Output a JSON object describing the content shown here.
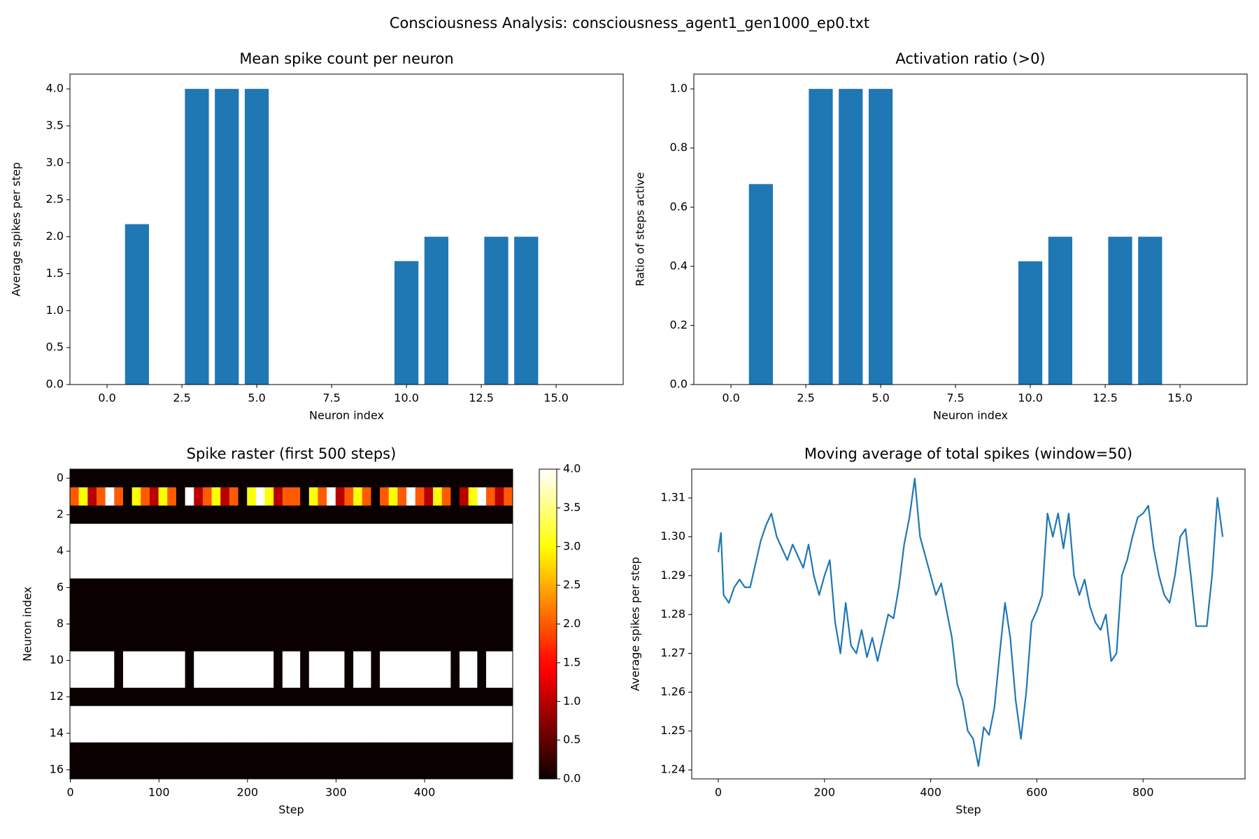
{
  "title": "Consciousness Analysis: consciousness_agent1_gen1000_ep0.txt",
  "chart_data": [
    {
      "type": "bar",
      "title": "Mean spike count per neuron",
      "xlabel": "Neuron index",
      "ylabel": "Average spikes per step",
      "x": [
        0,
        1,
        2,
        3,
        4,
        5,
        6,
        7,
        8,
        9,
        10,
        11,
        12,
        13,
        14,
        15,
        16
      ],
      "values": [
        0,
        2.17,
        0,
        4,
        4,
        4,
        0,
        0,
        0,
        0,
        1.67,
        2,
        0,
        2,
        2,
        0,
        0
      ],
      "color": "#1f77b4",
      "xlim": [
        -1.24,
        17.24
      ],
      "xticks": [
        {
          "value": 0,
          "label": "0.0"
        },
        {
          "value": 2.5,
          "label": "2.5"
        },
        {
          "value": 5,
          "label": "5.0"
        },
        {
          "value": 7.5,
          "label": "7.5"
        },
        {
          "value": 10,
          "label": "10.0"
        },
        {
          "value": 12.5,
          "label": "12.5"
        },
        {
          "value": 15,
          "label": "15.0"
        }
      ],
      "ylim": [
        0,
        4.2
      ],
      "yticks": [
        {
          "value": 0,
          "label": "0.0"
        },
        0.5,
        {
          "value": 1,
          "label": "1.0"
        },
        1.5,
        {
          "value": 2,
          "label": "2.0"
        },
        2.5,
        {
          "value": 3,
          "label": "3.0"
        },
        3.5,
        {
          "value": 4,
          "label": "4.0"
        }
      ]
    },
    {
      "type": "bar",
      "title": "Activation ratio (>0)",
      "xlabel": "Neuron index",
      "ylabel": "Ratio of steps active",
      "x": [
        0,
        1,
        2,
        3,
        4,
        5,
        6,
        7,
        8,
        9,
        10,
        11,
        12,
        13,
        14,
        15,
        16
      ],
      "values": [
        0,
        0.678,
        0,
        1,
        1,
        1,
        0,
        0,
        0,
        0,
        0.417,
        0.5,
        0,
        0.5,
        0.5,
        0,
        0
      ],
      "color": "#1f77b4",
      "xlim": [
        -1.24,
        17.24
      ],
      "xticks": [
        {
          "value": 0,
          "label": "0.0"
        },
        {
          "value": 2.5,
          "label": "2.5"
        },
        {
          "value": 5,
          "label": "5.0"
        },
        {
          "value": 7.5,
          "label": "7.5"
        },
        {
          "value": 10,
          "label": "10.0"
        },
        {
          "value": 12.5,
          "label": "12.5"
        },
        {
          "value": 15,
          "label": "15.0"
        }
      ],
      "ylim": [
        0,
        1.05
      ],
      "yticks": [
        {
          "value": 0,
          "label": "0.0"
        },
        0.2,
        0.4,
        0.6,
        0.8,
        {
          "value": 1,
          "label": "1.0"
        }
      ]
    },
    {
      "type": "heatmap",
      "title": "Spike raster (first 500 steps)",
      "xlabel": "Step",
      "ylabel": "Neuron index",
      "colormap": "hot",
      "clim": [
        0,
        4
      ],
      "colorbar_ticks": [
        {
          "value": 0,
          "label": "0.0"
        },
        0.5,
        {
          "value": 1,
          "label": "1.0"
        },
        1.5,
        {
          "value": 2,
          "label": "2.0"
        },
        2.5,
        {
          "value": 3,
          "label": "3.0"
        },
        3.5,
        {
          "value": 4,
          "label": "4.0"
        }
      ],
      "x": [
        0,
        10,
        20,
        30,
        40,
        50,
        60,
        70,
        80,
        90,
        100,
        110,
        120,
        130,
        140,
        150,
        160,
        170,
        180,
        190,
        200,
        210,
        220,
        230,
        240,
        250,
        260,
        270,
        280,
        290,
        300,
        310,
        320,
        330,
        340,
        350,
        360,
        370,
        380,
        390,
        400,
        410,
        420,
        430,
        440,
        450,
        460,
        470,
        480,
        490
      ],
      "y": [
        0,
        1,
        2,
        3,
        4,
        5,
        6,
        7,
        8,
        9,
        10,
        11,
        12,
        13,
        14,
        15,
        16
      ],
      "values": [
        [
          0,
          0,
          0,
          0,
          0,
          0,
          0,
          0,
          0,
          0,
          0,
          0,
          0,
          0,
          0,
          0,
          0,
          0,
          0,
          0,
          0,
          0,
          0,
          0,
          0,
          0,
          0,
          0,
          0,
          0,
          0,
          0,
          0,
          0,
          0,
          0,
          0,
          0,
          0,
          0,
          0,
          0,
          0,
          0,
          0,
          0,
          0,
          0,
          0,
          0
        ],
        [
          2,
          3,
          1,
          2,
          4,
          2,
          0,
          3,
          2,
          1,
          3,
          2,
          0,
          4,
          1,
          2,
          3,
          1,
          2,
          0,
          3,
          4,
          3,
          1,
          2,
          2,
          0,
          3,
          2,
          4,
          1,
          2,
          3,
          2,
          0,
          2,
          3,
          2,
          4,
          2,
          1,
          3,
          2,
          0,
          1,
          3,
          4,
          2,
          1,
          2
        ],
        [
          0,
          0,
          0,
          0,
          0,
          0,
          0,
          0,
          0,
          0,
          0,
          0,
          0,
          0,
          0,
          0,
          0,
          0,
          0,
          0,
          0,
          0,
          0,
          0,
          0,
          0,
          0,
          0,
          0,
          0,
          0,
          0,
          0,
          0,
          0,
          0,
          0,
          0,
          0,
          0,
          0,
          0,
          0,
          0,
          0,
          0,
          0,
          0,
          0,
          0
        ],
        [
          4,
          4,
          4,
          4,
          4,
          4,
          4,
          4,
          4,
          4,
          4,
          4,
          4,
          4,
          4,
          4,
          4,
          4,
          4,
          4,
          4,
          4,
          4,
          4,
          4,
          4,
          4,
          4,
          4,
          4,
          4,
          4,
          4,
          4,
          4,
          4,
          4,
          4,
          4,
          4,
          4,
          4,
          4,
          4,
          4,
          4,
          4,
          4,
          4,
          4
        ],
        [
          4,
          4,
          4,
          4,
          4,
          4,
          4,
          4,
          4,
          4,
          4,
          4,
          4,
          4,
          4,
          4,
          4,
          4,
          4,
          4,
          4,
          4,
          4,
          4,
          4,
          4,
          4,
          4,
          4,
          4,
          4,
          4,
          4,
          4,
          4,
          4,
          4,
          4,
          4,
          4,
          4,
          4,
          4,
          4,
          4,
          4,
          4,
          4,
          4,
          4
        ],
        [
          4,
          4,
          4,
          4,
          4,
          4,
          4,
          4,
          4,
          4,
          4,
          4,
          4,
          4,
          4,
          4,
          4,
          4,
          4,
          4,
          4,
          4,
          4,
          4,
          4,
          4,
          4,
          4,
          4,
          4,
          4,
          4,
          4,
          4,
          4,
          4,
          4,
          4,
          4,
          4,
          4,
          4,
          4,
          4,
          4,
          4,
          4,
          4,
          4,
          4
        ],
        [
          0,
          0,
          0,
          0,
          0,
          0,
          0,
          0,
          0,
          0,
          0,
          0,
          0,
          0,
          0,
          0,
          0,
          0,
          0,
          0,
          0,
          0,
          0,
          0,
          0,
          0,
          0,
          0,
          0,
          0,
          0,
          0,
          0,
          0,
          0,
          0,
          0,
          0,
          0,
          0,
          0,
          0,
          0,
          0,
          0,
          0,
          0,
          0,
          0,
          0
        ],
        [
          0,
          0,
          0,
          0,
          0,
          0,
          0,
          0,
          0,
          0,
          0,
          0,
          0,
          0,
          0,
          0,
          0,
          0,
          0,
          0,
          0,
          0,
          0,
          0,
          0,
          0,
          0,
          0,
          0,
          0,
          0,
          0,
          0,
          0,
          0,
          0,
          0,
          0,
          0,
          0,
          0,
          0,
          0,
          0,
          0,
          0,
          0,
          0,
          0,
          0
        ],
        [
          0,
          0,
          0,
          0,
          0,
          0,
          0,
          0,
          0,
          0,
          0,
          0,
          0,
          0,
          0,
          0,
          0,
          0,
          0,
          0,
          0,
          0,
          0,
          0,
          0,
          0,
          0,
          0,
          0,
          0,
          0,
          0,
          0,
          0,
          0,
          0,
          0,
          0,
          0,
          0,
          0,
          0,
          0,
          0,
          0,
          0,
          0,
          0,
          0,
          0
        ],
        [
          0,
          0,
          0,
          0,
          0,
          0,
          0,
          0,
          0,
          0,
          0,
          0,
          0,
          0,
          0,
          0,
          0,
          0,
          0,
          0,
          0,
          0,
          0,
          0,
          0,
          0,
          0,
          0,
          0,
          0,
          0,
          0,
          0,
          0,
          0,
          0,
          0,
          0,
          0,
          0,
          0,
          0,
          0,
          0,
          0,
          0,
          0,
          0,
          0,
          0
        ],
        [
          4,
          4,
          4,
          4,
          4,
          0,
          4,
          4,
          4,
          4,
          4,
          4,
          4,
          0,
          4,
          4,
          4,
          4,
          4,
          4,
          4,
          4,
          4,
          0,
          4,
          4,
          0,
          4,
          4,
          4,
          4,
          0,
          4,
          4,
          0,
          4,
          4,
          4,
          4,
          4,
          4,
          4,
          4,
          0,
          4,
          4,
          0,
          4,
          4,
          4
        ],
        [
          4,
          4,
          4,
          4,
          4,
          0,
          4,
          4,
          4,
          4,
          4,
          4,
          4,
          0,
          4,
          4,
          4,
          4,
          4,
          4,
          4,
          4,
          4,
          0,
          4,
          4,
          0,
          4,
          4,
          4,
          4,
          0,
          4,
          4,
          0,
          4,
          4,
          4,
          4,
          4,
          4,
          4,
          4,
          0,
          4,
          4,
          0,
          4,
          4,
          4
        ],
        [
          0,
          0,
          0,
          0,
          0,
          0,
          0,
          0,
          0,
          0,
          0,
          0,
          0,
          0,
          0,
          0,
          0,
          0,
          0,
          0,
          0,
          0,
          0,
          0,
          0,
          0,
          0,
          0,
          0,
          0,
          0,
          0,
          0,
          0,
          0,
          0,
          0,
          0,
          0,
          0,
          0,
          0,
          0,
          0,
          0,
          0,
          0,
          0,
          0,
          0
        ],
        [
          4,
          4,
          4,
          4,
          4,
          4,
          4,
          4,
          4,
          4,
          4,
          4,
          4,
          4,
          4,
          4,
          4,
          4,
          4,
          4,
          4,
          4,
          4,
          4,
          4,
          4,
          4,
          4,
          4,
          4,
          4,
          4,
          4,
          4,
          4,
          4,
          4,
          4,
          4,
          4,
          4,
          4,
          4,
          4,
          4,
          4,
          4,
          4,
          4,
          4
        ],
        [
          4,
          4,
          4,
          4,
          4,
          4,
          4,
          4,
          4,
          4,
          4,
          4,
          4,
          4,
          4,
          4,
          4,
          4,
          4,
          4,
          4,
          4,
          4,
          4,
          4,
          4,
          4,
          4,
          4,
          4,
          4,
          4,
          4,
          4,
          4,
          4,
          4,
          4,
          4,
          4,
          4,
          4,
          4,
          4,
          4,
          4,
          4,
          4,
          4,
          4
        ],
        [
          0,
          0,
          0,
          0,
          0,
          0,
          0,
          0,
          0,
          0,
          0,
          0,
          0,
          0,
          0,
          0,
          0,
          0,
          0,
          0,
          0,
          0,
          0,
          0,
          0,
          0,
          0,
          0,
          0,
          0,
          0,
          0,
          0,
          0,
          0,
          0,
          0,
          0,
          0,
          0,
          0,
          0,
          0,
          0,
          0,
          0,
          0,
          0,
          0,
          0
        ],
        [
          0,
          0,
          0,
          0,
          0,
          0,
          0,
          0,
          0,
          0,
          0,
          0,
          0,
          0,
          0,
          0,
          0,
          0,
          0,
          0,
          0,
          0,
          0,
          0,
          0,
          0,
          0,
          0,
          0,
          0,
          0,
          0,
          0,
          0,
          0,
          0,
          0,
          0,
          0,
          0,
          0,
          0,
          0,
          0,
          0,
          0,
          0,
          0,
          0,
          0
        ]
      ],
      "xlim": [
        -0.5,
        499.5
      ],
      "xticks": [
        0,
        100,
        200,
        300,
        400
      ],
      "ylim": [
        16.5,
        -0.5
      ],
      "yticks": [
        0,
        2,
        4,
        6,
        8,
        10,
        12,
        14,
        16
      ]
    },
    {
      "type": "line",
      "title": "Moving average of total spikes (window=50)",
      "xlabel": "Step",
      "ylabel": "Average spikes per step",
      "color": "#1f77b4",
      "x": [
        0,
        5,
        10,
        20,
        30,
        40,
        50,
        60,
        70,
        80,
        90,
        100,
        110,
        120,
        130,
        140,
        150,
        160,
        170,
        180,
        190,
        200,
        210,
        220,
        230,
        240,
        250,
        260,
        270,
        280,
        290,
        300,
        310,
        320,
        330,
        340,
        350,
        360,
        370,
        380,
        390,
        400,
        410,
        420,
        430,
        440,
        450,
        460,
        470,
        480,
        490,
        500,
        510,
        520,
        530,
        540,
        550,
        560,
        570,
        580,
        590,
        600,
        610,
        620,
        630,
        640,
        650,
        660,
        670,
        680,
        690,
        700,
        710,
        720,
        730,
        740,
        750,
        760,
        770,
        780,
        790,
        800,
        810,
        820,
        830,
        840,
        850,
        860,
        870,
        880,
        890,
        900,
        910,
        920,
        930,
        940,
        950
      ],
      "values": [
        1.296,
        1.301,
        1.285,
        1.283,
        1.287,
        1.289,
        1.287,
        1.287,
        1.293,
        1.299,
        1.303,
        1.306,
        1.3,
        1.297,
        1.294,
        1.298,
        1.295,
        1.292,
        1.298,
        1.29,
        1.285,
        1.29,
        1.294,
        1.278,
        1.27,
        1.283,
        1.272,
        1.27,
        1.276,
        1.269,
        1.274,
        1.268,
        1.274,
        1.28,
        1.279,
        1.287,
        1.298,
        1.305,
        1.315,
        1.3,
        1.295,
        1.29,
        1.285,
        1.288,
        1.281,
        1.274,
        1.262,
        1.258,
        1.25,
        1.248,
        1.241,
        1.251,
        1.249,
        1.256,
        1.27,
        1.283,
        1.274,
        1.258,
        1.248,
        1.26,
        1.278,
        1.281,
        1.285,
        1.306,
        1.3,
        1.306,
        1.297,
        1.306,
        1.29,
        1.285,
        1.289,
        1.282,
        1.278,
        1.276,
        1.28,
        1.268,
        1.27,
        1.29,
        1.294,
        1.3,
        1.305,
        1.306,
        1.308,
        1.297,
        1.29,
        1.285,
        1.283,
        1.29,
        1.3,
        1.302,
        1.29,
        1.277,
        1.277,
        1.277,
        1.29,
        1.31,
        1.3
      ],
      "xlim": [
        -50,
        992
      ],
      "xticks": [
        0,
        200,
        400,
        600,
        800
      ],
      "ylim": [
        1.2377,
        1.3174
      ],
      "yticks": [
        1.24,
        1.25,
        1.26,
        1.27,
        1.28,
        1.29,
        {
          "value": 1.3,
          "label": "1.30"
        },
        1.31
      ]
    }
  ]
}
